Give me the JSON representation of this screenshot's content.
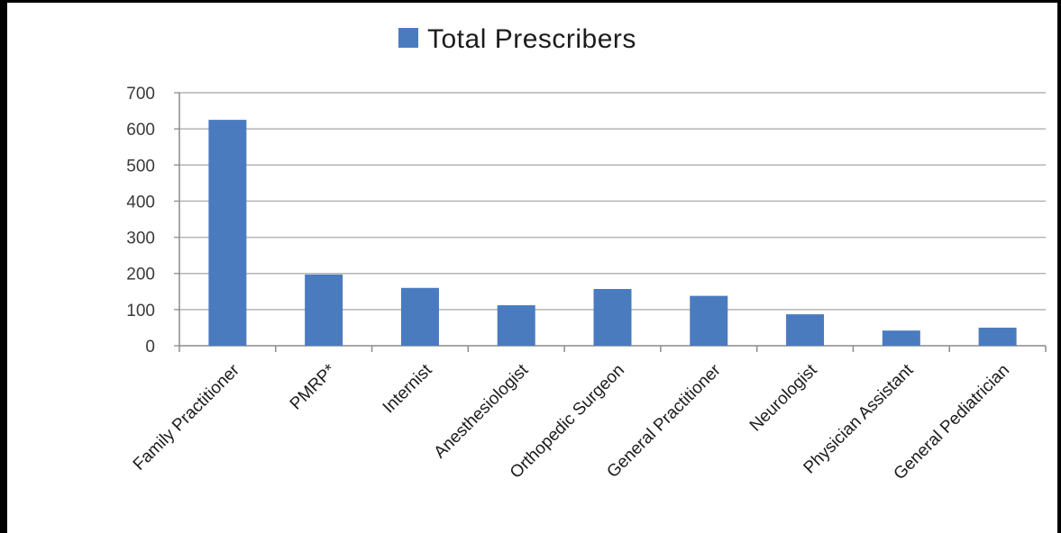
{
  "chart_data": {
    "type": "bar",
    "legend_position": "top",
    "grid": true,
    "ylim": [
      0,
      700
    ],
    "yticks": [
      0,
      100,
      200,
      300,
      400,
      500,
      600,
      700
    ],
    "categories": [
      "Family Practitioner",
      "PMRP*",
      "Internist",
      "Anesthesiologist",
      "Orthopedic Surgeon",
      "General Practitioner",
      "Neurologist",
      "Physician Assistant",
      "General Pediatrician"
    ],
    "series": [
      {
        "name": "Total Prescribers",
        "color": "#4a7bbf",
        "values": [
          625,
          197,
          160,
          112,
          157,
          138,
          87,
          42,
          50
        ]
      }
    ]
  }
}
